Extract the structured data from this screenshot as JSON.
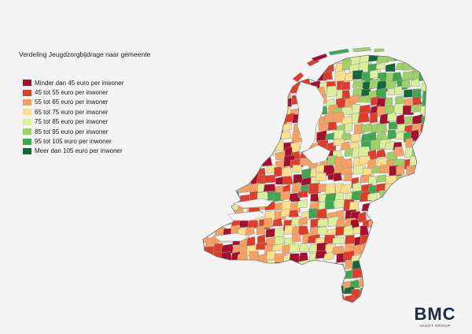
{
  "title": "Verdeling Jeugdzorgbijdrage naar gemeente",
  "legend": [
    {
      "label": "Minder dan 45 euro per inwoner",
      "color": "#a50f2d"
    },
    {
      "label": "45 tot 55 euro per inwoner",
      "color": "#e03c2b"
    },
    {
      "label": "55 tot 65 euro per inwoner",
      "color": "#f7a061"
    },
    {
      "label": "65 tot 75 euro per inwoner",
      "color": "#fce08b"
    },
    {
      "label": "75 tot 85 euro per inwoner",
      "color": "#dcef9b"
    },
    {
      "label": "85 tot 95 euro per inwoner",
      "color": "#9fd167"
    },
    {
      "label": "95 tot 105 euro per inwoner",
      "color": "#3fa84f"
    },
    {
      "label": "Meer dan 105 euro per inwoner",
      "color": "#11683a"
    }
  ],
  "logo": {
    "name": "BMC",
    "subtitle": "VACHT GROUP"
  },
  "map": {
    "region": "Nederland",
    "water_color": "#f4f4f4",
    "border_color": "#9a9a9a"
  }
}
